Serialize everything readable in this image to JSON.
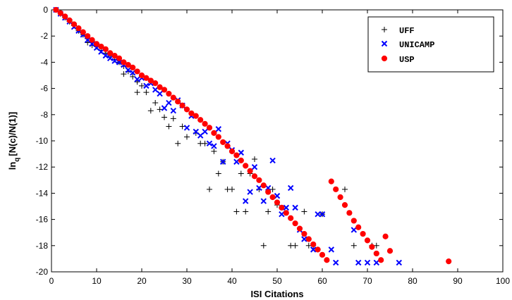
{
  "chart_data": {
    "type": "scatter",
    "title": "",
    "xlabel": "ISI Citations",
    "ylabel_main": "ln",
    "ylabel_sub": "q",
    "ylabel_rest": "[N(c)/N(1)]",
    "xlim": [
      0,
      100
    ],
    "ylim": [
      -20,
      0
    ],
    "xticks": [
      0,
      10,
      20,
      30,
      40,
      50,
      60,
      70,
      80,
      90,
      100
    ],
    "yticks": [
      0,
      -2,
      -4,
      -6,
      -8,
      -10,
      -12,
      -14,
      -16,
      -18,
      -20
    ],
    "grid": false,
    "legend_position": "top-right",
    "series": [
      {
        "name": "UFF",
        "marker": "plus",
        "color": "#000000",
        "points": [
          [
            1,
            0
          ],
          [
            2,
            -0.3
          ],
          [
            3,
            -0.6
          ],
          [
            4,
            -0.9
          ],
          [
            5,
            -1.2
          ],
          [
            6,
            -1.6
          ],
          [
            7,
            -1.9
          ],
          [
            8,
            -2.2
          ],
          [
            8,
            -2.5
          ],
          [
            9,
            -2.4
          ],
          [
            9,
            -2.7
          ],
          [
            10,
            -2.8
          ],
          [
            11,
            -3.1
          ],
          [
            12,
            -3.3
          ],
          [
            13,
            -3.5
          ],
          [
            14,
            -3.8
          ],
          [
            15,
            -4.0
          ],
          [
            16,
            -4.3
          ],
          [
            16,
            -4.9
          ],
          [
            17,
            -4.7
          ],
          [
            18,
            -5.1
          ],
          [
            19,
            -5.5
          ],
          [
            19,
            -6.3
          ],
          [
            20,
            -5.8
          ],
          [
            21,
            -6.3
          ],
          [
            22,
            -7.7
          ],
          [
            23,
            -7.1
          ],
          [
            24,
            -7.6
          ],
          [
            25,
            -8.2
          ],
          [
            26,
            -8.9
          ],
          [
            27,
            -8.3
          ],
          [
            28,
            -10.2
          ],
          [
            29,
            -8.9
          ],
          [
            30,
            -9.7
          ],
          [
            32,
            -9.4
          ],
          [
            33,
            -10.2
          ],
          [
            34,
            -10.2
          ],
          [
            35,
            -13.7
          ],
          [
            36,
            -10.8
          ],
          [
            37,
            -12.5
          ],
          [
            38,
            -11.6
          ],
          [
            39,
            -13.7
          ],
          [
            40,
            -13.7
          ],
          [
            41,
            -15.4
          ],
          [
            42,
            -12.5
          ],
          [
            43,
            -15.4
          ],
          [
            44,
            -12.5
          ],
          [
            45,
            -11.4
          ],
          [
            46,
            -13.7
          ],
          [
            47,
            -18.0
          ],
          [
            48,
            -15.4
          ],
          [
            49,
            -13.7
          ],
          [
            50,
            -14.9
          ],
          [
            53,
            -18.0
          ],
          [
            54,
            -18.0
          ],
          [
            56,
            -15.4
          ],
          [
            57,
            -18.0
          ],
          [
            58,
            -18.0
          ],
          [
            60,
            -15.6
          ],
          [
            65,
            -13.7
          ],
          [
            67,
            -18.0
          ],
          [
            71,
            -18.0
          ],
          [
            72,
            -18.0
          ]
        ]
      },
      {
        "name": "UNICAMP",
        "marker": "cross",
        "color": "#0000ff",
        "points": [
          [
            1,
            0
          ],
          [
            2,
            -0.3
          ],
          [
            3,
            -0.6
          ],
          [
            4,
            -0.9
          ],
          [
            5,
            -1.3
          ],
          [
            6,
            -1.6
          ],
          [
            7,
            -1.9
          ],
          [
            8,
            -2.3
          ],
          [
            9,
            -2.6
          ],
          [
            10,
            -2.9
          ],
          [
            11,
            -3.2
          ],
          [
            12,
            -3.5
          ],
          [
            13,
            -3.7
          ],
          [
            14,
            -3.9
          ],
          [
            15,
            -4.0
          ],
          [
            16,
            -4.2
          ],
          [
            17,
            -4.6
          ],
          [
            18,
            -4.8
          ],
          [
            19,
            -5.3
          ],
          [
            20,
            -5.2
          ],
          [
            21,
            -5.8
          ],
          [
            22,
            -5.6
          ],
          [
            23,
            -6.1
          ],
          [
            24,
            -6.4
          ],
          [
            25,
            -7.5
          ],
          [
            26,
            -7.1
          ],
          [
            27,
            -7.7
          ],
          [
            28,
            -6.9
          ],
          [
            29,
            -7.3
          ],
          [
            30,
            -9.0
          ],
          [
            31,
            -8.1
          ],
          [
            32,
            -9.3
          ],
          [
            33,
            -9.6
          ],
          [
            34,
            -9.3
          ],
          [
            35,
            -10.2
          ],
          [
            36,
            -10.4
          ],
          [
            37,
            -9.1
          ],
          [
            38,
            -11.6
          ],
          [
            39,
            -10.2
          ],
          [
            40,
            -10.7
          ],
          [
            41,
            -11.6
          ],
          [
            42,
            -10.9
          ],
          [
            43,
            -14.6
          ],
          [
            44,
            -13.9
          ],
          [
            45,
            -12.0
          ],
          [
            46,
            -13.6
          ],
          [
            47,
            -14.6
          ],
          [
            48,
            -13.6
          ],
          [
            49,
            -11.5
          ],
          [
            50,
            -14.2
          ],
          [
            51,
            -15.6
          ],
          [
            52,
            -15.1
          ],
          [
            53,
            -13.6
          ],
          [
            54,
            -15.1
          ],
          [
            55,
            -16.8
          ],
          [
            56,
            -17.5
          ],
          [
            58,
            -18.3
          ],
          [
            59,
            -15.6
          ],
          [
            60,
            -15.6
          ],
          [
            62,
            -18.3
          ],
          [
            63,
            -19.3
          ],
          [
            67,
            -16.8
          ],
          [
            68,
            -19.3
          ],
          [
            70,
            -19.3
          ],
          [
            72,
            -19.3
          ],
          [
            77,
            -19.3
          ]
        ]
      },
      {
        "name": "USP",
        "marker": "star",
        "color": "#ff0000",
        "points": [
          [
            1,
            0
          ],
          [
            2,
            -0.25
          ],
          [
            3,
            -0.5
          ],
          [
            4,
            -0.8
          ],
          [
            5,
            -1.1
          ],
          [
            6,
            -1.4
          ],
          [
            7,
            -1.7
          ],
          [
            8,
            -2.0
          ],
          [
            9,
            -2.3
          ],
          [
            10,
            -2.6
          ],
          [
            11,
            -2.8
          ],
          [
            12,
            -3.0
          ],
          [
            13,
            -3.3
          ],
          [
            14,
            -3.5
          ],
          [
            15,
            -3.7
          ],
          [
            16,
            -4.0
          ],
          [
            17,
            -4.2
          ],
          [
            18,
            -4.4
          ],
          [
            19,
            -4.7
          ],
          [
            20,
            -5.0
          ],
          [
            21,
            -5.2
          ],
          [
            22,
            -5.4
          ],
          [
            23,
            -5.6
          ],
          [
            24,
            -5.9
          ],
          [
            25,
            -6.1
          ],
          [
            26,
            -6.4
          ],
          [
            27,
            -6.7
          ],
          [
            28,
            -7.0
          ],
          [
            29,
            -7.3
          ],
          [
            30,
            -7.6
          ],
          [
            31,
            -7.9
          ],
          [
            32,
            -8.1
          ],
          [
            33,
            -8.4
          ],
          [
            34,
            -8.7
          ],
          [
            35,
            -9.0
          ],
          [
            36,
            -9.4
          ],
          [
            37,
            -9.7
          ],
          [
            38,
            -10.1
          ],
          [
            39,
            -10.4
          ],
          [
            40,
            -10.8
          ],
          [
            41,
            -11.1
          ],
          [
            42,
            -11.5
          ],
          [
            43,
            -11.9
          ],
          [
            44,
            -12.3
          ],
          [
            45,
            -12.7
          ],
          [
            46,
            -13.0
          ],
          [
            47,
            -13.4
          ],
          [
            48,
            -13.9
          ],
          [
            49,
            -14.3
          ],
          [
            50,
            -14.7
          ],
          [
            51,
            -15.1
          ],
          [
            52,
            -15.5
          ],
          [
            53,
            -15.9
          ],
          [
            54,
            -16.3
          ],
          [
            55,
            -16.7
          ],
          [
            56,
            -17.1
          ],
          [
            57,
            -17.5
          ],
          [
            58,
            -17.9
          ],
          [
            59,
            -18.3
          ],
          [
            60,
            -18.7
          ],
          [
            61,
            -19.1
          ],
          [
            62,
            -13.1
          ],
          [
            63,
            -13.7
          ],
          [
            64,
            -14.3
          ],
          [
            65,
            -14.9
          ],
          [
            66,
            -15.5
          ],
          [
            67,
            -16.1
          ],
          [
            68,
            -16.6
          ],
          [
            69,
            -17.1
          ],
          [
            70,
            -17.6
          ],
          [
            71,
            -18.1
          ],
          [
            72,
            -18.6
          ],
          [
            73,
            -19.1
          ],
          [
            74,
            -17.3
          ],
          [
            75,
            -18.4
          ],
          [
            88,
            -19.2
          ]
        ]
      }
    ]
  }
}
